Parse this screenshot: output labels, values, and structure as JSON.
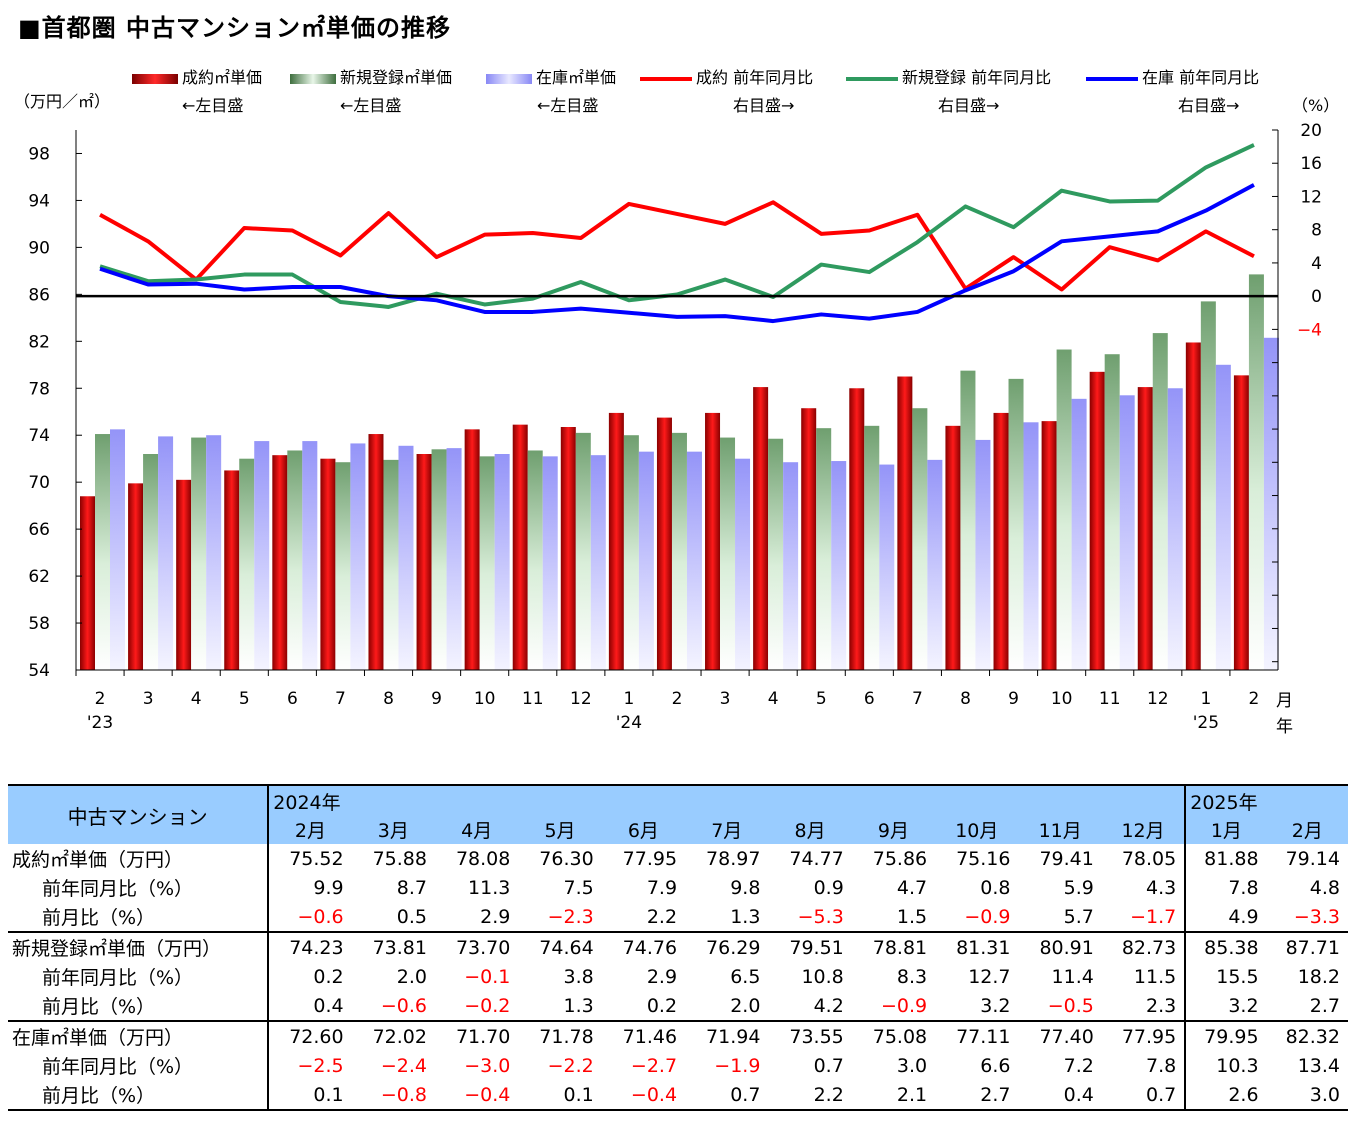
{
  "title": "■首都圏 中古マンション㎡単価の推移",
  "legend": [
    {
      "label": "成約㎡単価",
      "sub": "←左目盛",
      "kind": "bar",
      "color": "#e00000"
    },
    {
      "label": "新規登録㎡単価",
      "sub": "←左目盛",
      "kind": "bar",
      "color": "#7fae7f"
    },
    {
      "label": "在庫㎡単価",
      "sub": "←左目盛",
      "kind": "bar",
      "color": "#9d9dfb"
    },
    {
      "label": "成約 前年同月比",
      "sub": "右目盛→",
      "kind": "line",
      "color": "#ff0000"
    },
    {
      "label": "新規登録 前年同月比",
      "sub": "右目盛→",
      "kind": "line",
      "color": "#2f9a5f"
    },
    {
      "label": "在庫 前年同月比",
      "sub": "右目盛→",
      "kind": "line",
      "color": "#0000ff"
    }
  ],
  "left_unit": "（万円／㎡）",
  "right_unit": "（%）",
  "month_mark": "月",
  "year_mark": "年",
  "chart_data": {
    "type": "bar",
    "categories": [
      "2",
      "3",
      "4",
      "5",
      "6",
      "7",
      "8",
      "9",
      "10",
      "11",
      "12",
      "1",
      "2",
      "3",
      "4",
      "5",
      "6",
      "7",
      "8",
      "9",
      "10",
      "11",
      "12",
      "1",
      "2"
    ],
    "year_labels": [
      {
        "index": 0,
        "text": "'23"
      },
      {
        "index": 11,
        "text": "'24"
      },
      {
        "index": 23,
        "text": "'25"
      }
    ],
    "y_left": {
      "min": 54,
      "max": 98,
      "ticks": [
        54,
        58,
        62,
        66,
        70,
        74,
        78,
        82,
        86,
        90,
        94,
        98
      ],
      "range": [
        54,
        100
      ]
    },
    "y_right": {
      "ticks": [
        20,
        16,
        12,
        8,
        4,
        0,
        -4
      ],
      "range": [
        -45,
        20
      ]
    },
    "bar_series": [
      {
        "name": "成約㎡単価",
        "color": "#e00000",
        "values": [
          68.8,
          69.9,
          70.2,
          71.0,
          72.3,
          72.0,
          74.1,
          72.4,
          74.5,
          74.9,
          74.7,
          75.9,
          75.5,
          75.9,
          78.1,
          76.3,
          78.0,
          79.0,
          74.8,
          75.9,
          75.2,
          79.4,
          78.1,
          81.9,
          79.1
        ]
      },
      {
        "name": "新規登録㎡単価",
        "color": "#7fae7f",
        "values": [
          74.1,
          72.4,
          73.8,
          72.0,
          72.7,
          71.7,
          71.9,
          72.8,
          72.2,
          72.7,
          74.2,
          74.0,
          74.2,
          73.8,
          73.7,
          74.6,
          74.8,
          76.3,
          79.5,
          78.8,
          81.3,
          80.9,
          82.7,
          85.4,
          87.7
        ]
      },
      {
        "name": "在庫㎡単価",
        "color": "#9d9dfb",
        "values": [
          74.5,
          73.9,
          74.0,
          73.5,
          73.5,
          73.3,
          73.1,
          72.9,
          72.4,
          72.2,
          72.3,
          72.6,
          72.6,
          72.0,
          71.7,
          71.8,
          71.5,
          71.9,
          73.6,
          75.1,
          77.1,
          77.4,
          78.0,
          80.0,
          82.3
        ]
      }
    ],
    "line_series": [
      {
        "name": "成約 前年同月比",
        "color": "#ff0000",
        "values": [
          9.8,
          6.6,
          2.0,
          8.2,
          7.9,
          4.9,
          10.0,
          4.7,
          7.4,
          7.6,
          7.0,
          11.1,
          9.9,
          8.7,
          11.3,
          7.5,
          7.9,
          9.8,
          0.9,
          4.7,
          0.8,
          5.9,
          4.3,
          7.8,
          4.8
        ]
      },
      {
        "name": "新規登録 前年同月比",
        "color": "#2f9a5f",
        "values": [
          3.6,
          1.8,
          2.0,
          2.6,
          2.6,
          -0.7,
          -1.3,
          0.3,
          -1.0,
          -0.3,
          1.7,
          -0.5,
          0.2,
          2.0,
          -0.1,
          3.8,
          2.9,
          6.5,
          10.8,
          8.3,
          12.7,
          11.4,
          11.5,
          15.5,
          18.2
        ]
      },
      {
        "name": "在庫 前年同月比",
        "color": "#0000ff",
        "values": [
          3.3,
          1.4,
          1.5,
          0.8,
          1.1,
          1.1,
          0.0,
          -0.5,
          -1.9,
          -1.9,
          -1.5,
          -2.0,
          -2.5,
          -2.4,
          -3.0,
          -2.2,
          -2.7,
          -1.9,
          0.7,
          3.0,
          6.6,
          7.2,
          7.8,
          10.3,
          13.4
        ]
      }
    ]
  },
  "table": {
    "corner": "中古マンション",
    "year_2024": "2024年",
    "year_2025": "2025年",
    "months": [
      "2月",
      "3月",
      "4月",
      "5月",
      "6月",
      "7月",
      "8月",
      "9月",
      "10月",
      "11月",
      "12月",
      "1月",
      "2月"
    ],
    "rows": [
      {
        "label": "成約㎡単価（万円）",
        "sub": false,
        "values": [
          "75.52",
          "75.88",
          "78.08",
          "76.30",
          "77.95",
          "78.97",
          "74.77",
          "75.86",
          "75.16",
          "79.41",
          "78.05",
          "81.88",
          "79.14"
        ]
      },
      {
        "label": "前年同月比（%）",
        "sub": true,
        "values": [
          "9.9",
          "8.7",
          "11.3",
          "7.5",
          "7.9",
          "9.8",
          "0.9",
          "4.7",
          "0.8",
          "5.9",
          "4.3",
          "7.8",
          "4.8"
        ]
      },
      {
        "label": "前月比（%）",
        "sub": true,
        "values": [
          "−0.6",
          "0.5",
          "2.9",
          "−2.3",
          "2.2",
          "1.3",
          "−5.3",
          "1.5",
          "−0.9",
          "5.7",
          "−1.7",
          "4.9",
          "−3.3"
        ]
      },
      {
        "label": "新規登録㎡単価（万円）",
        "sub": false,
        "values": [
          "74.23",
          "73.81",
          "73.70",
          "74.64",
          "74.76",
          "76.29",
          "79.51",
          "78.81",
          "81.31",
          "80.91",
          "82.73",
          "85.38",
          "87.71"
        ]
      },
      {
        "label": "前年同月比（%）",
        "sub": true,
        "values": [
          "0.2",
          "2.0",
          "−0.1",
          "3.8",
          "2.9",
          "6.5",
          "10.8",
          "8.3",
          "12.7",
          "11.4",
          "11.5",
          "15.5",
          "18.2"
        ]
      },
      {
        "label": "前月比（%）",
        "sub": true,
        "values": [
          "0.4",
          "−0.6",
          "−0.2",
          "1.3",
          "0.2",
          "2.0",
          "4.2",
          "−0.9",
          "3.2",
          "−0.5",
          "2.3",
          "3.2",
          "2.7"
        ]
      },
      {
        "label": "在庫㎡単価（万円）",
        "sub": false,
        "values": [
          "72.60",
          "72.02",
          "71.70",
          "71.78",
          "71.46",
          "71.94",
          "73.55",
          "75.08",
          "77.11",
          "77.40",
          "77.95",
          "79.95",
          "82.32"
        ]
      },
      {
        "label": "前年同月比（%）",
        "sub": true,
        "values": [
          "−2.5",
          "−2.4",
          "−3.0",
          "−2.2",
          "−2.7",
          "−1.9",
          "0.7",
          "3.0",
          "6.6",
          "7.2",
          "7.8",
          "10.3",
          "13.4"
        ]
      },
      {
        "label": "前月比（%）",
        "sub": true,
        "values": [
          "0.1",
          "−0.8",
          "−0.4",
          "0.1",
          "−0.4",
          "0.7",
          "2.2",
          "2.1",
          "2.7",
          "0.4",
          "0.7",
          "2.6",
          "3.0"
        ]
      }
    ]
  }
}
